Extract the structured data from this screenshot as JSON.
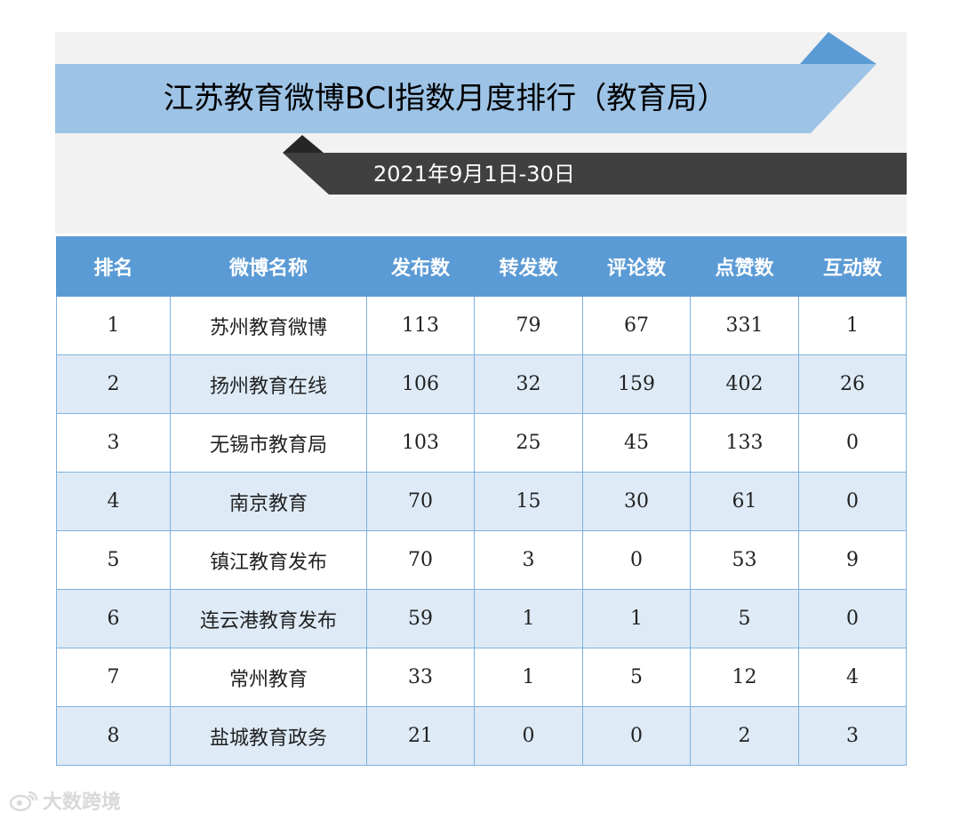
{
  "header": {
    "title": "江苏教育微博BCI指数月度排行（教育局）",
    "date_range": "2021年9月1日-30日"
  },
  "table": {
    "columns": [
      "排名",
      "微博名称",
      "发布数",
      "转发数",
      "评论数",
      "点赞数",
      "互动数"
    ],
    "rows": [
      [
        "1",
        "苏州教育微博",
        "113",
        "79",
        "67",
        "331",
        "1"
      ],
      [
        "2",
        "扬州教育在线",
        "106",
        "32",
        "159",
        "402",
        "26"
      ],
      [
        "3",
        "无锡市教育局",
        "103",
        "25",
        "45",
        "133",
        "0"
      ],
      [
        "4",
        "南京教育",
        "70",
        "15",
        "30",
        "61",
        "0"
      ],
      [
        "5",
        "镇江教育发布",
        "70",
        "3",
        "0",
        "53",
        "9"
      ],
      [
        "6",
        "连云港教育发布",
        "59",
        "1",
        "1",
        "5",
        "0"
      ],
      [
        "7",
        "常州教育",
        "33",
        "1",
        "5",
        "12",
        "4"
      ],
      [
        "8",
        "盐城教育政务",
        "21",
        "0",
        "0",
        "2",
        "3"
      ]
    ]
  },
  "watermark": {
    "text": "大数跨境",
    "icon": "weibo-logo-icon"
  },
  "colors": {
    "banner_light_blue": "#9dc3e6",
    "banner_blue": "#5b9bd5",
    "date_bar": "#404040",
    "header_row": "#5b9bd5",
    "alt_row": "#deebf7",
    "panel_bg": "#f2f2f2"
  }
}
